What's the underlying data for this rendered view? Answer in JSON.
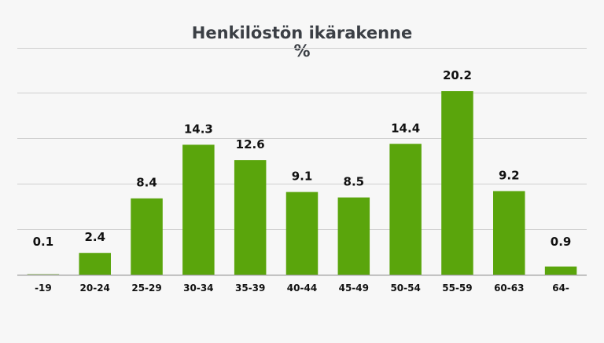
{
  "chart_data": {
    "type": "bar",
    "title": "Henkilöstön ikärakenne",
    "subtitle": "%",
    "xlabel": "",
    "ylabel": "",
    "categories": [
      "-19",
      "20-24",
      "25-29",
      "30-34",
      "35-39",
      "40-44",
      "45-49",
      "50-54",
      "55-59",
      "60-63",
      "64-"
    ],
    "values": [
      0.1,
      2.4,
      8.4,
      14.3,
      12.6,
      9.1,
      8.5,
      14.4,
      20.2,
      9.2,
      0.9
    ],
    "ylim": [
      0,
      25
    ],
    "yticks": [
      0,
      5,
      10,
      15,
      20,
      25
    ],
    "grid": true,
    "legend": "none",
    "colors": {
      "bar": "#5aa50c",
      "grid": "#cfcfcf",
      "title": "#3b3f45",
      "background": "#f7f7f7"
    }
  }
}
